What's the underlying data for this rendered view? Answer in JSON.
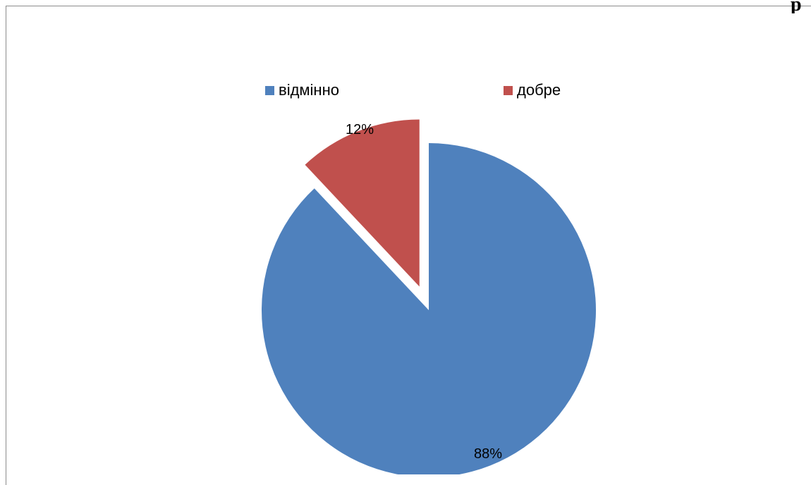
{
  "chart_title_fragment": "р",
  "chart_data": {
    "type": "pie",
    "title": "",
    "categories": [
      "відмінно",
      "добре"
    ],
    "values": [
      88,
      12
    ],
    "value_labels": [
      "88%",
      "12%"
    ],
    "colors": [
      "#4F81BD",
      "#C0504D"
    ],
    "exploded": [
      "добре"
    ],
    "start_angle_deg": 0,
    "direction": "clockwise",
    "legend": "top"
  }
}
